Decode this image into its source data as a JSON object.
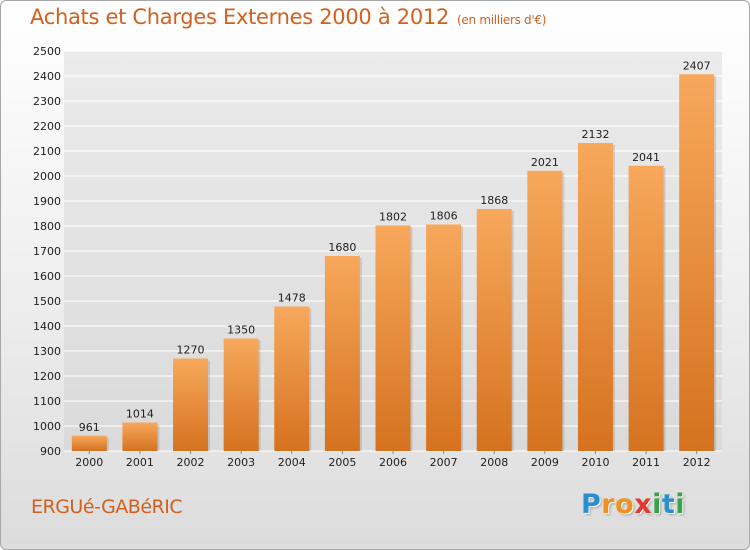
{
  "chart_data": {
    "type": "bar",
    "title": "Achats et Charges Externes 2000 à 2012",
    "unit_label": "(en milliers d'€)",
    "categories": [
      "2000",
      "2001",
      "2002",
      "2003",
      "2004",
      "2005",
      "2006",
      "2007",
      "2008",
      "2009",
      "2010",
      "2011",
      "2012"
    ],
    "values": [
      961,
      1014,
      1270,
      1350,
      1478,
      1680,
      1802,
      1806,
      1868,
      2021,
      2132,
      2041,
      2407
    ],
    "ylim": [
      900,
      2500
    ],
    "yticks": [
      900,
      1000,
      1100,
      1200,
      1300,
      1400,
      1500,
      1600,
      1700,
      1800,
      1900,
      2000,
      2100,
      2200,
      2300,
      2400,
      2500
    ],
    "grid": true,
    "xlabel": "",
    "ylabel": ""
  },
  "commune": "ERGUé-GABéRIC",
  "logo": {
    "letters": [
      "P",
      "r",
      "o",
      "x",
      "i",
      "t",
      "i"
    ],
    "colors": [
      "#2a8fd0",
      "#f0901e",
      "#f0901e",
      "#e03a2e",
      "#3aa34a",
      "#2a8fd0",
      "#3aa34a"
    ]
  },
  "colors": {
    "accent": "#d2601e",
    "bar_top": "#f7a85c",
    "bar_bottom": "#d5721f",
    "grid": "#ffffff",
    "axis_text": "#222222"
  }
}
